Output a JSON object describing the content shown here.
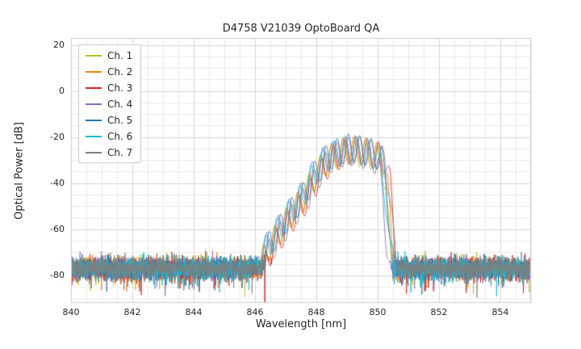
{
  "chart_data": {
    "type": "line",
    "title": "D4758 V21039 OptoBoard QA",
    "xlabel": "Wavelength [nm]",
    "ylabel": "Optical Power [dB]",
    "xlim": [
      840,
      855
    ],
    "ylim": [
      -92,
      23
    ],
    "xticks": [
      840,
      842,
      844,
      846,
      848,
      850,
      852,
      854
    ],
    "yticks": [
      20,
      0,
      -20,
      -40,
      -60,
      -80
    ],
    "grid": {
      "major": true,
      "minor": true,
      "minor_x_step_nm": 0.5,
      "minor_y_step_db": 5
    },
    "legend_position": "upper left",
    "noise_floor_db": {
      "mean": -77,
      "std": 2.2,
      "spike_prob": 0.03,
      "spike_extra_db": 9
    },
    "ripple": {
      "period_nm": 0.37,
      "depth_db": 12,
      "center_nm": 849
    },
    "envelope_keypoints": [
      [
        846.0,
        -76
      ],
      [
        846.4,
        -63
      ],
      [
        846.8,
        -55
      ],
      [
        847.2,
        -47
      ],
      [
        847.6,
        -40
      ],
      [
        848.0,
        -30
      ],
      [
        848.4,
        -23
      ],
      [
        848.8,
        -20.5
      ],
      [
        849.1,
        -19
      ],
      [
        849.5,
        -20
      ],
      [
        849.9,
        -21.5
      ],
      [
        850.15,
        -24
      ],
      [
        850.3,
        -35
      ],
      [
        850.45,
        -60
      ],
      [
        850.6,
        -77
      ]
    ],
    "series": [
      {
        "name": "Ch. 1",
        "color": "#bcbd22",
        "x_offset_nm": -0.05,
        "peak_db_offset": -1.0,
        "phase": 0.0
      },
      {
        "name": "Ch. 2",
        "color": "#ff7f0e",
        "x_offset_nm": 0.02,
        "peak_db_offset": 0.0,
        "phase": 0.9
      },
      {
        "name": "Ch. 3",
        "color": "#d62728",
        "x_offset_nm": 0.12,
        "peak_db_offset": -0.5,
        "phase": 1.8
      },
      {
        "name": "Ch. 4",
        "color": "#9467bd",
        "x_offset_nm": -0.15,
        "peak_db_offset": -1.0,
        "phase": 2.7
      },
      {
        "name": "Ch. 5",
        "color": "#1f77b4",
        "x_offset_nm": -0.02,
        "peak_db_offset": 0.5,
        "phase": 3.6
      },
      {
        "name": "Ch. 6",
        "color": "#17becf",
        "x_offset_nm": -0.08,
        "peak_db_offset": 0.0,
        "phase": 4.5
      },
      {
        "name": "Ch. 7",
        "color": "#7f7f7f",
        "x_offset_nm": 0.08,
        "peak_db_offset": -0.5,
        "phase": 5.4
      }
    ],
    "artifacts": [
      {
        "series": "Ch. 3",
        "x_nm": 846.32,
        "y_db": -95
      }
    ]
  }
}
